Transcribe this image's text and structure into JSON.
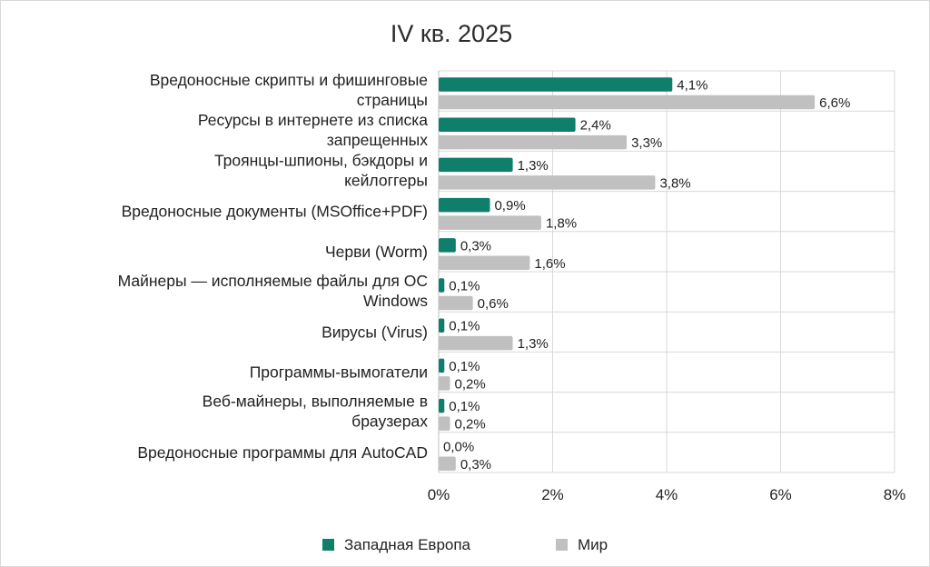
{
  "chart_data": {
    "type": "bar",
    "orientation": "horizontal",
    "title": "IV кв. 2025",
    "categories": [
      [
        "Вредоносные скрипты и фишинговые",
        "страницы"
      ],
      [
        "Ресурсы в интернете из списка",
        "запрещенных"
      ],
      [
        "Троянцы-шпионы, бэкдоры и",
        "кейлоггеры"
      ],
      [
        "Вредоносные документы (MSOffice+PDF)"
      ],
      [
        "Черви (Worm)"
      ],
      [
        "Майнеры — исполняемые файлы для ОС",
        "Windows"
      ],
      [
        "Вирусы (Virus)"
      ],
      [
        "Программы-вымогатели"
      ],
      [
        "Веб-майнеры, выполняемые в",
        "браузерах"
      ],
      [
        "Вредоносные программы для AutoCAD"
      ]
    ],
    "series": [
      {
        "name": "Западная Европа",
        "color": "#0f7e6b",
        "values": [
          4.1,
          2.4,
          1.3,
          0.9,
          0.3,
          0.1,
          0.1,
          0.1,
          0.1,
          0.0
        ],
        "labels": [
          "4,1%",
          "2,4%",
          "1,3%",
          "0,9%",
          "0,3%",
          "0,1%",
          "0,1%",
          "0,1%",
          "0,1%",
          "0,0%"
        ]
      },
      {
        "name": "Мир",
        "color": "#c0c0c0",
        "values": [
          6.6,
          3.3,
          3.8,
          1.8,
          1.6,
          0.6,
          1.3,
          0.2,
          0.2,
          0.3
        ],
        "labels": [
          "6,6%",
          "3,3%",
          "3,8%",
          "1,8%",
          "1,6%",
          "0,6%",
          "1,3%",
          "0,2%",
          "0,2%",
          "0,3%"
        ]
      }
    ],
    "xlim": [
      0,
      8
    ],
    "xticks": [
      0,
      2,
      4,
      6,
      8
    ],
    "xtick_labels": [
      "0%",
      "2%",
      "4%",
      "6%",
      "8%"
    ],
    "grid": "vertical",
    "legend": "bottom"
  }
}
